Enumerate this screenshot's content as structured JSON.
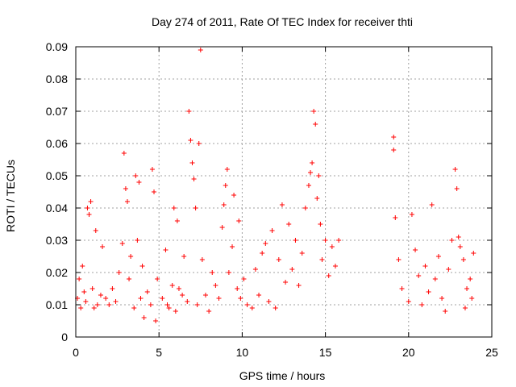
{
  "chart_data": {
    "type": "scatter",
    "title": "Day 274 of 2011, Rate Of TEC Index for receiver thti",
    "xlabel": "GPS time / hours",
    "ylabel": "ROTI / TECUs",
    "xlim": [
      0,
      25
    ],
    "ylim": [
      0,
      0.09
    ],
    "x_ticks": [
      0,
      5,
      10,
      15,
      20,
      25
    ],
    "x_tick_labels": [
      "0",
      "5",
      "10",
      "15",
      "20",
      "25"
    ],
    "y_ticks": [
      0,
      0.01,
      0.02,
      0.03,
      0.04,
      0.05,
      0.06,
      0.07,
      0.08,
      0.09
    ],
    "y_tick_labels": [
      "0",
      "0.01",
      "0.02",
      "0.03",
      "0.04",
      "0.05",
      "0.06",
      "0.07",
      "0.08",
      "0.09"
    ],
    "grid": true,
    "marker": "+",
    "marker_color": "#ff0000",
    "series": [
      {
        "name": "ROTI",
        "points": [
          [
            0.1,
            0.012
          ],
          [
            0.2,
            0.018
          ],
          [
            0.3,
            0.009
          ],
          [
            0.4,
            0.022
          ],
          [
            0.5,
            0.014
          ],
          [
            0.6,
            0.011
          ],
          [
            0.7,
            0.04
          ],
          [
            0.8,
            0.038
          ],
          [
            0.9,
            0.042
          ],
          [
            1.0,
            0.015
          ],
          [
            1.1,
            0.009
          ],
          [
            1.2,
            0.033
          ],
          [
            1.3,
            0.01
          ],
          [
            1.5,
            0.013
          ],
          [
            1.6,
            0.028
          ],
          [
            1.8,
            0.012
          ],
          [
            2.0,
            0.01
          ],
          [
            2.2,
            0.015
          ],
          [
            2.4,
            0.011
          ],
          [
            2.6,
            0.02
          ],
          [
            2.8,
            0.029
          ],
          [
            2.9,
            0.057
          ],
          [
            3.0,
            0.046
          ],
          [
            3.1,
            0.042
          ],
          [
            3.2,
            0.018
          ],
          [
            3.3,
            0.025
          ],
          [
            3.5,
            0.009
          ],
          [
            3.6,
            0.05
          ],
          [
            3.7,
            0.03
          ],
          [
            3.8,
            0.048
          ],
          [
            3.9,
            0.012
          ],
          [
            4.0,
            0.022
          ],
          [
            4.1,
            0.006
          ],
          [
            4.3,
            0.014
          ],
          [
            4.5,
            0.01
          ],
          [
            4.6,
            0.052
          ],
          [
            4.7,
            0.045
          ],
          [
            4.8,
            0.005
          ],
          [
            4.9,
            0.018
          ],
          [
            5.2,
            0.012
          ],
          [
            5.4,
            0.027
          ],
          [
            5.5,
            0.01
          ],
          [
            5.6,
            0.009
          ],
          [
            5.8,
            0.016
          ],
          [
            5.9,
            0.04
          ],
          [
            6.0,
            0.008
          ],
          [
            6.1,
            0.036
          ],
          [
            6.2,
            0.015
          ],
          [
            6.4,
            0.013
          ],
          [
            6.5,
            0.025
          ],
          [
            6.7,
            0.011
          ],
          [
            6.8,
            0.07
          ],
          [
            6.9,
            0.061
          ],
          [
            7.0,
            0.054
          ],
          [
            7.1,
            0.049
          ],
          [
            7.2,
            0.04
          ],
          [
            7.3,
            0.01
          ],
          [
            7.4,
            0.06
          ],
          [
            7.5,
            0.089
          ],
          [
            7.6,
            0.024
          ],
          [
            7.8,
            0.013
          ],
          [
            8.0,
            0.008
          ],
          [
            8.2,
            0.02
          ],
          [
            8.4,
            0.016
          ],
          [
            8.6,
            0.012
          ],
          [
            8.8,
            0.034
          ],
          [
            8.9,
            0.041
          ],
          [
            9.0,
            0.047
          ],
          [
            9.1,
            0.052
          ],
          [
            9.2,
            0.02
          ],
          [
            9.4,
            0.028
          ],
          [
            9.5,
            0.044
          ],
          [
            9.7,
            0.015
          ],
          [
            9.8,
            0.036
          ],
          [
            9.9,
            0.012
          ],
          [
            10.1,
            0.018
          ],
          [
            10.3,
            0.01
          ],
          [
            10.6,
            0.009
          ],
          [
            10.8,
            0.021
          ],
          [
            11.0,
            0.013
          ],
          [
            11.2,
            0.026
          ],
          [
            11.4,
            0.029
          ],
          [
            11.6,
            0.011
          ],
          [
            11.8,
            0.033
          ],
          [
            12.0,
            0.009
          ],
          [
            12.2,
            0.024
          ],
          [
            12.4,
            0.041
          ],
          [
            12.6,
            0.017
          ],
          [
            12.8,
            0.035
          ],
          [
            13.0,
            0.021
          ],
          [
            13.2,
            0.03
          ],
          [
            13.4,
            0.016
          ],
          [
            13.6,
            0.026
          ],
          [
            13.8,
            0.04
          ],
          [
            14.0,
            0.047
          ],
          [
            14.1,
            0.051
          ],
          [
            14.2,
            0.054
          ],
          [
            14.3,
            0.07
          ],
          [
            14.4,
            0.066
          ],
          [
            14.5,
            0.043
          ],
          [
            14.6,
            0.05
          ],
          [
            14.7,
            0.035
          ],
          [
            14.8,
            0.024
          ],
          [
            15.0,
            0.03
          ],
          [
            15.2,
            0.019
          ],
          [
            15.4,
            0.028
          ],
          [
            15.6,
            0.022
          ],
          [
            15.8,
            0.03
          ],
          [
            19.1,
            0.062
          ],
          [
            19.1,
            0.058
          ],
          [
            19.2,
            0.037
          ],
          [
            19.4,
            0.024
          ],
          [
            19.6,
            0.015
          ],
          [
            20.0,
            0.011
          ],
          [
            20.2,
            0.038
          ],
          [
            20.4,
            0.027
          ],
          [
            20.6,
            0.019
          ],
          [
            20.8,
            0.01
          ],
          [
            21.0,
            0.022
          ],
          [
            21.2,
            0.014
          ],
          [
            21.4,
            0.041
          ],
          [
            21.6,
            0.018
          ],
          [
            21.8,
            0.025
          ],
          [
            22.0,
            0.012
          ],
          [
            22.2,
            0.008
          ],
          [
            22.4,
            0.021
          ],
          [
            22.6,
            0.03
          ],
          [
            22.8,
            0.052
          ],
          [
            22.9,
            0.046
          ],
          [
            23.0,
            0.031
          ],
          [
            23.1,
            0.028
          ],
          [
            23.3,
            0.024
          ],
          [
            23.4,
            0.009
          ],
          [
            23.5,
            0.015
          ],
          [
            23.7,
            0.018
          ],
          [
            23.8,
            0.012
          ],
          [
            23.9,
            0.026
          ]
        ]
      }
    ]
  }
}
